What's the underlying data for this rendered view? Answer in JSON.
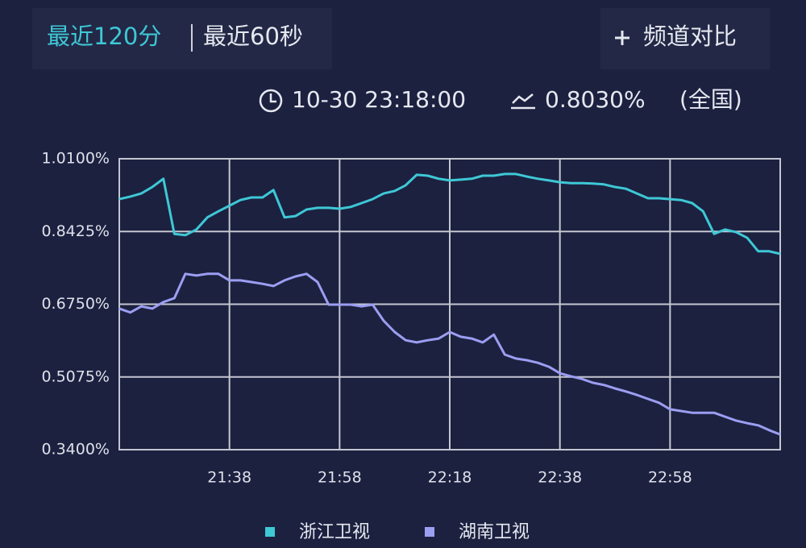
{
  "header": {
    "tabs": [
      "最近120分",
      "最近60秒"
    ],
    "button": "频道对比",
    "time": "10-30 23:18:00",
    "rate": "0.8030%",
    "region": "(全国)"
  },
  "chart_data": {
    "type": "line",
    "x": [
      "21:18",
      "21:20",
      "21:22",
      "21:24",
      "21:26",
      "21:28",
      "21:30",
      "21:32",
      "21:34",
      "21:36",
      "21:38",
      "21:40",
      "21:42",
      "21:44",
      "21:46",
      "21:48",
      "21:50",
      "21:52",
      "21:54",
      "21:56",
      "21:58",
      "22:00",
      "22:02",
      "22:04",
      "22:06",
      "22:08",
      "22:10",
      "22:12",
      "22:14",
      "22:16",
      "22:18",
      "22:20",
      "22:22",
      "22:24",
      "22:26",
      "22:28",
      "22:30",
      "22:32",
      "22:34",
      "22:36",
      "22:38",
      "22:40",
      "22:42",
      "22:44",
      "22:46",
      "22:48",
      "22:50",
      "22:52",
      "22:54",
      "22:56",
      "22:58",
      "23:00",
      "23:02",
      "23:04",
      "23:06",
      "23:08",
      "23:10",
      "23:12",
      "23:14",
      "23:16",
      "23:18"
    ],
    "xticks": [
      "21:38",
      "21:58",
      "22:18",
      "22:38",
      "22:58"
    ],
    "ylim": [
      0.34,
      1.01
    ],
    "yticks": [
      {
        "value": 0.34,
        "label": "0.3400%"
      },
      {
        "value": 0.5075,
        "label": "0.5075%"
      },
      {
        "value": 0.675,
        "label": "0.6750%"
      },
      {
        "value": 0.8425,
        "label": "0.8425%"
      },
      {
        "value": 1.01,
        "label": "1.0100%"
      }
    ],
    "grid": true,
    "series": [
      {
        "name": "浙江卫视",
        "color": "#3ec8d6",
        "values": [
          0.917,
          0.923,
          0.93,
          0.945,
          0.964,
          0.837,
          0.834,
          0.847,
          0.875,
          0.889,
          0.902,
          0.915,
          0.921,
          0.921,
          0.938,
          0.875,
          0.878,
          0.893,
          0.897,
          0.897,
          0.895,
          0.899,
          0.908,
          0.917,
          0.93,
          0.936,
          0.949,
          0.973,
          0.971,
          0.964,
          0.96,
          0.962,
          0.964,
          0.971,
          0.971,
          0.975,
          0.975,
          0.969,
          0.964,
          0.96,
          0.956,
          0.954,
          0.954,
          0.953,
          0.951,
          0.945,
          0.941,
          0.93,
          0.919,
          0.919,
          0.917,
          0.915,
          0.908,
          0.889,
          0.837,
          0.847,
          0.841,
          0.828,
          0.797,
          0.797,
          0.791
        ]
      },
      {
        "name": "湖南卫视",
        "color": "#9c9ef2",
        "values": [
          0.665,
          0.656,
          0.67,
          0.665,
          0.68,
          0.689,
          0.745,
          0.741,
          0.745,
          0.745,
          0.73,
          0.73,
          0.726,
          0.722,
          0.717,
          0.73,
          0.739,
          0.745,
          0.726,
          0.674,
          0.674,
          0.674,
          0.67,
          0.674,
          0.637,
          0.611,
          0.592,
          0.587,
          0.592,
          0.596,
          0.611,
          0.6,
          0.596,
          0.587,
          0.605,
          0.559,
          0.55,
          0.546,
          0.54,
          0.531,
          0.516,
          0.509,
          0.503,
          0.494,
          0.489,
          0.481,
          0.474,
          0.466,
          0.457,
          0.448,
          0.433,
          0.429,
          0.425,
          0.425,
          0.425,
          0.416,
          0.407,
          0.401,
          0.396,
          0.385,
          0.375
        ]
      }
    ]
  }
}
